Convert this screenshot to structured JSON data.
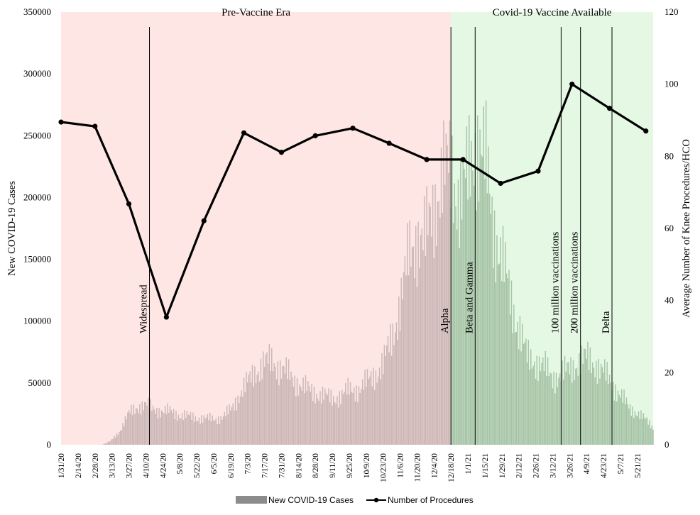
{
  "colors": {
    "pre_vaccine_bg": "#fde6e4",
    "vaccine_bg": "#e4f8e4",
    "bars_pre": "#cbb6b6",
    "bars_post": "#a6c3a6",
    "line": "#000000"
  },
  "chart_data": {
    "type": "bar+line",
    "title": "",
    "ylabel_left": "New COVID-19 Cases",
    "ylabel_right": "Average Number of Knee Procedures/HCO",
    "y_left_range": [
      0,
      350000
    ],
    "y_left_ticks": [
      "0",
      "50000",
      "100000",
      "150000",
      "200000",
      "250000",
      "300000",
      "350000"
    ],
    "y_right_range": [
      0,
      120
    ],
    "y_right_ticks": [
      "0",
      "20",
      "40",
      "60",
      "80",
      "100",
      "120"
    ],
    "x_tick_labels": [
      "1/31/20",
      "2/14/20",
      "2/28/20",
      "3/13/20",
      "3/27/20",
      "4/10/20",
      "4/24/20",
      "5/8/20",
      "5/22/20",
      "6/5/20",
      "6/19/20",
      "7/3/20",
      "7/17/20",
      "7/31/20",
      "8/14/20",
      "8/28/20",
      "9/11/20",
      "9/25/20",
      "10/9/20",
      "10/23/20",
      "11/6/20",
      "11/20/20",
      "12/4/20",
      "12/18/20",
      "1/1/21",
      "1/15/21",
      "1/29/21",
      "2/12/21",
      "2/26/21",
      "3/12/21",
      "3/26/21",
      "4/9/21",
      "4/23/21",
      "5/7/21",
      "5/21/21"
    ],
    "x_range": [
      "1/31/20",
      "6/3/21"
    ],
    "regions": [
      {
        "label": "Pre-Vaccine Era",
        "start": "1/31/20",
        "end": "12/18/20"
      },
      {
        "label": "Covid-19 Vaccine Available",
        "start": "12/18/20",
        "end": "6/3/21"
      }
    ],
    "annotations": [
      {
        "label": "Widespread",
        "date": "4/13/20"
      },
      {
        "label": "Alpha",
        "date": "12/18/20"
      },
      {
        "label": "Beta and Gamma",
        "date": "1/7/21"
      },
      {
        "label": "100 million vaccinations",
        "date": "3/19/21"
      },
      {
        "label": "200 million vaccinations",
        "date": "4/4/21"
      },
      {
        "label": "Delta",
        "date": "4/30/21"
      }
    ],
    "cases_series": {
      "name": "New COVID-19 Cases",
      "anchors": [
        [
          "1/31/20",
          0
        ],
        [
          "3/5/20",
          0
        ],
        [
          "3/12/20",
          3000
        ],
        [
          "3/20/20",
          12000
        ],
        [
          "3/27/20",
          25000
        ],
        [
          "4/3/20",
          31000
        ],
        [
          "4/10/20",
          32000
        ],
        [
          "4/17/20",
          29000
        ],
        [
          "4/24/20",
          27000
        ],
        [
          "5/1/20",
          27000
        ],
        [
          "5/8/20",
          24000
        ],
        [
          "5/15/20",
          23000
        ],
        [
          "5/22/20",
          22000
        ],
        [
          "5/29/20",
          21000
        ],
        [
          "6/5/20",
          21000
        ],
        [
          "6/12/20",
          22000
        ],
        [
          "6/19/20",
          28000
        ],
        [
          "6/26/20",
          40000
        ],
        [
          "7/3/20",
          50000
        ],
        [
          "7/10/20",
          60000
        ],
        [
          "7/17/20",
          66000
        ],
        [
          "7/24/20",
          67000
        ],
        [
          "7/31/20",
          62000
        ],
        [
          "8/7/20",
          55000
        ],
        [
          "8/14/20",
          50000
        ],
        [
          "8/21/20",
          45000
        ],
        [
          "8/28/20",
          42000
        ],
        [
          "9/4/20",
          40000
        ],
        [
          "9/11/20",
          37000
        ],
        [
          "9/18/20",
          40000
        ],
        [
          "9/25/20",
          44000
        ],
        [
          "10/2/20",
          45000
        ],
        [
          "10/9/20",
          50000
        ],
        [
          "10/16/20",
          57000
        ],
        [
          "10/23/20",
          65000
        ],
        [
          "10/30/20",
          85000
        ],
        [
          "11/6/20",
          115000
        ],
        [
          "11/13/20",
          150000
        ],
        [
          "11/20/20",
          170000
        ],
        [
          "11/27/20",
          165000
        ],
        [
          "12/4/20",
          195000
        ],
        [
          "12/11/20",
          215000
        ],
        [
          "12/18/20",
          225000
        ],
        [
          "12/25/20",
          200000
        ],
        [
          "1/1/21",
          215000
        ],
        [
          "1/8/21",
          250000
        ],
        [
          "1/15/21",
          230000
        ],
        [
          "1/22/21",
          180000
        ],
        [
          "1/29/21",
          150000
        ],
        [
          "2/5/21",
          120000
        ],
        [
          "2/12/21",
          95000
        ],
        [
          "2/19/21",
          70000
        ],
        [
          "2/26/21",
          68000
        ],
        [
          "3/5/21",
          62000
        ],
        [
          "3/12/21",
          55000
        ],
        [
          "3/19/21",
          56000
        ],
        [
          "3/26/21",
          62000
        ],
        [
          "4/2/21",
          66000
        ],
        [
          "4/9/21",
          70000
        ],
        [
          "4/16/21",
          66000
        ],
        [
          "4/23/21",
          58000
        ],
        [
          "4/30/21",
          50000
        ],
        [
          "5/7/21",
          40000
        ],
        [
          "5/14/21",
          30000
        ],
        [
          "5/21/21",
          26000
        ],
        [
          "5/28/21",
          20000
        ],
        [
          "6/3/21",
          14000
        ]
      ]
    },
    "procedures_series": {
      "name": "Number of Procedures",
      "points": [
        [
          "1/31/20",
          89.5
        ],
        [
          "2/28/20",
          88.3
        ],
        [
          "3/27/20",
          66.8
        ],
        [
          "4/27/20",
          35.4
        ],
        [
          "5/28/20",
          62.1
        ],
        [
          "6/30/20",
          86.5
        ],
        [
          "7/31/20",
          81.1
        ],
        [
          "8/28/20",
          85.7
        ],
        [
          "9/28/20",
          87.8
        ],
        [
          "10/28/20",
          83.6
        ],
        [
          "11/28/20",
          79.1
        ],
        [
          "12/28/20",
          79.1
        ],
        [
          "1/28/21",
          72.5
        ],
        [
          "2/28/21",
          75.9
        ],
        [
          "3/28/21",
          100.0
        ],
        [
          "4/28/21",
          93.3
        ],
        [
          "5/28/21",
          87.0
        ]
      ]
    },
    "legend": {
      "position": "bottom",
      "entries": [
        "New COVID-19 Cases",
        "Number of Procedures"
      ]
    }
  }
}
